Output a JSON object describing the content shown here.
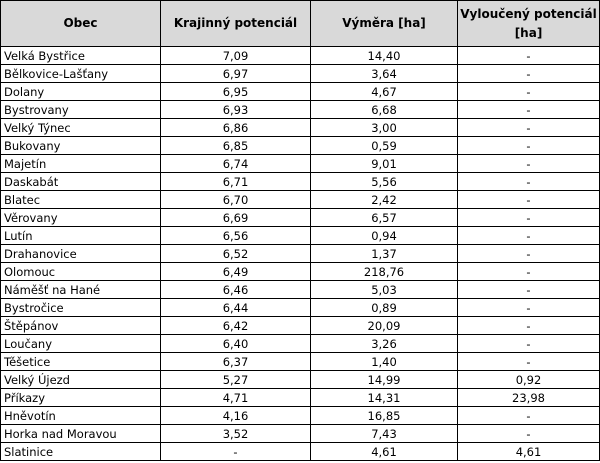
{
  "table": {
    "headers": [
      "Obec",
      "Krajinný potenciál",
      "Výměra [ha]",
      "Vyloučený potenciál [ha]"
    ],
    "rows": [
      [
        "Velká Bystřice",
        "7,09",
        "14,40",
        "-"
      ],
      [
        "Bělkovice-Lašťany",
        "6,97",
        "3,64",
        "-"
      ],
      [
        "Dolany",
        "6,95",
        "4,67",
        "-"
      ],
      [
        "Bystrovany",
        "6,93",
        "6,68",
        "-"
      ],
      [
        "Velký Týnec",
        "6,86",
        "3,00",
        "-"
      ],
      [
        "Bukovany",
        "6,85",
        "0,59",
        "-"
      ],
      [
        "Majetín",
        "6,74",
        "9,01",
        "-"
      ],
      [
        "Daskabát",
        "6,71",
        "5,56",
        "-"
      ],
      [
        "Blatec",
        "6,70",
        "2,42",
        "-"
      ],
      [
        "Věrovany",
        "6,69",
        "6,57",
        "-"
      ],
      [
        "Lutín",
        "6,56",
        "0,94",
        "-"
      ],
      [
        "Drahanovice",
        "6,52",
        "1,37",
        "-"
      ],
      [
        "Olomouc",
        "6,49",
        "218,76",
        "-"
      ],
      [
        "Náměšť na Hané",
        "6,46",
        "5,03",
        "-"
      ],
      [
        "Bystročice",
        "6,44",
        "0,89",
        "-"
      ],
      [
        "Štěpánov",
        "6,42",
        "20,09",
        "-"
      ],
      [
        "Loučany",
        "6,40",
        "3,26",
        "-"
      ],
      [
        "Těšetice",
        "6,37",
        "1,40",
        "-"
      ],
      [
        "Velký Újezd",
        "5,27",
        "14,99",
        "0,92"
      ],
      [
        "Příkazy",
        "4,71",
        "14,31",
        "23,98"
      ],
      [
        "Hněvotín",
        "4,16",
        "16,85",
        "-"
      ],
      [
        "Horka nad Moravou",
        "3,52",
        "7,43",
        "-"
      ],
      [
        "Slatinice",
        "-",
        "4,61",
        "4,61"
      ]
    ]
  },
  "colors": {
    "header_background": "#d9d9d9",
    "border": "#000000",
    "text": "#000000"
  }
}
